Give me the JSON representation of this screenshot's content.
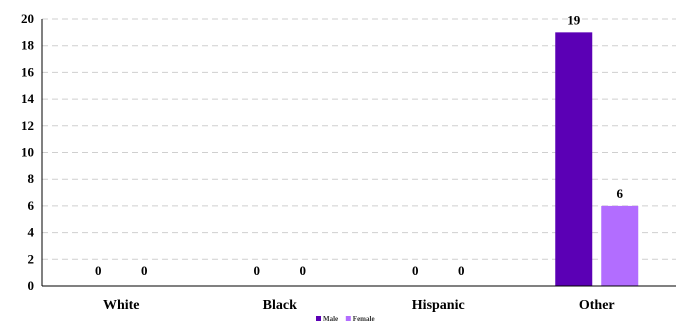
{
  "chart_data": {
    "type": "bar",
    "categories": [
      "White",
      "Black",
      "Hispanic",
      "Other"
    ],
    "series": [
      {
        "name": "Male",
        "values": [
          0,
          0,
          0,
          19
        ],
        "color": "#5b00b5"
      },
      {
        "name": "Female",
        "values": [
          0,
          0,
          0,
          6
        ],
        "color": "#b26dff"
      }
    ],
    "ylim": [
      0,
      20
    ],
    "yticks": [
      0,
      2,
      4,
      6,
      8,
      10,
      12,
      14,
      16,
      18,
      20
    ],
    "grid": true,
    "legend_position": "bottom-center",
    "title": "",
    "xlabel": "",
    "ylabel": ""
  }
}
